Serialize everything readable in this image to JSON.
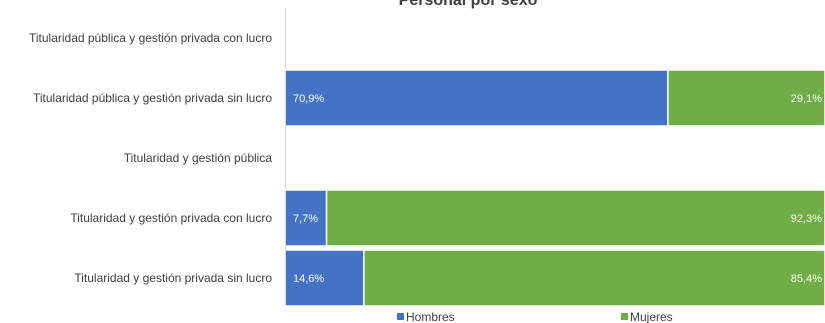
{
  "chart_data": {
    "type": "bar",
    "orientation": "horizontal",
    "stacked": "percent",
    "title": "Personal por sexo",
    "categories": [
      "Titularidad pública y gestión privada con lucro",
      "Titularidad pública y gestión privada sin lucro",
      "Titularidad y gestión pública",
      "Titularidad y gestión privada con lucro",
      "Titularidad y gestión privada sin lucro"
    ],
    "series": [
      {
        "name": "Hombres",
        "color": "#4472C4",
        "values": [
          null,
          70.9,
          null,
          7.7,
          14.6
        ],
        "labels": [
          "",
          "70,9%",
          "",
          "7,7%",
          "14,6%"
        ]
      },
      {
        "name": "Mujeres",
        "color": "#70AD47",
        "values": [
          null,
          29.1,
          null,
          92.3,
          85.4
        ],
        "labels": [
          "",
          "29,1%",
          "",
          "92,3%",
          "85,4%"
        ]
      }
    ],
    "xlim": [
      0,
      100
    ],
    "grid": false,
    "legend_position": "bottom"
  }
}
